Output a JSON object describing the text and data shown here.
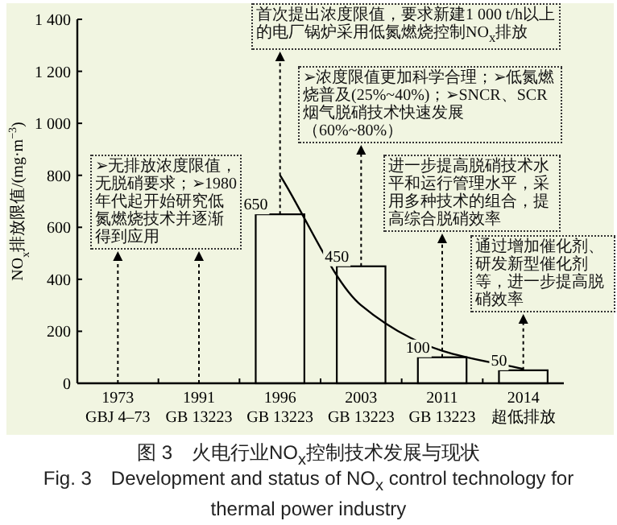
{
  "chart_data": {
    "type": "bar",
    "title": "图 3　火电行业NO$_{x}$控制技术发展与现状",
    "subtitle": "Fig. 3　Development and status of NO$_{x}$ control technology for thermal power industry",
    "ylabel": "NO$_{x}$排放限值/(mg·m$^{−3}$)",
    "categories": [
      "1973\nGBJ 4–73",
      "1991\nGB 13223",
      "1996\nGB 13223",
      "2003\nGB 13223",
      "2011\nGB 13223",
      "2014\n超低排放"
    ],
    "series": [
      {
        "color": "#f4f7e6",
        "values": [
          null,
          null,
          650,
          450,
          100,
          50
        ],
        "value_labels": [
          null,
          null,
          "650",
          "450",
          "100",
          "50"
        ]
      },
      {
        "type": "line",
        "color": "#000000",
        "values": [
          null,
          null,
          800,
          300,
          125,
          55
        ]
      }
    ],
    "ylim": [
      0,
      1400
    ],
    "yticks": [
      0,
      200,
      400,
      600,
      800,
      {
        "value": 1000,
        "label": "1 000"
      },
      {
        "value": 1200,
        "label": "1 200"
      },
      {
        "value": 1400,
        "label": "1 400"
      }
    ],
    "grid": false,
    "annotations": [
      "➢无排放浓度限值，无脱硝要求；➢1980年代起开始研究低氮燃烧技术并逐渐得到应用",
      {
        "text": "首次提出浓度限值，要求新建1 000 t/h以上的电厂锅炉采用低氮燃烧控制NO$_{x}$排放",
        "x": "1996\nGB 13223",
        "y": 650
      },
      {
        "text": "➢浓度限值更加科学合理；➢低氮燃烧普及(25%~40%)；➢SNCR、SCR烟气脱硝技术快速发展（60%~80%）",
        "x": "2003\nGB 13223",
        "y": 450
      },
      {
        "text": "进一步提高脱硝技术水平和运行管理水平，采用多种技术的组合，提高综合脱硝效率",
        "x": "2011\nGB 13223",
        "y": 100
      },
      {
        "text": "通过增加催化剂、研发新型催化剂等，进一步提高脱硝效率",
        "x": "2014\n超低排放",
        "y": 50
      }
    ]
  }
}
